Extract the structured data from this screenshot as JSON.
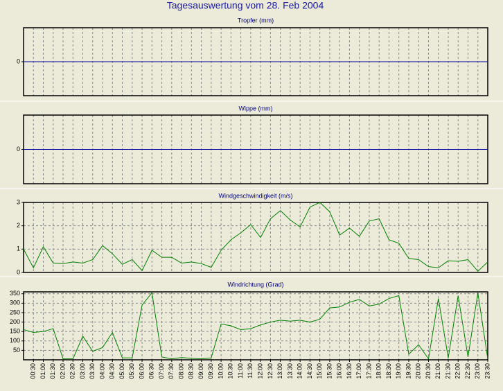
{
  "title": "Tagesauswertung vom 28. Feb 2004",
  "chart_data": [
    {
      "type": "line",
      "title": "Tropfer (mm)",
      "ylim": [
        -1,
        1
      ],
      "yticks": [
        0
      ],
      "grid": true,
      "series": [
        {
          "color": "#0000a0",
          "values": [
            0,
            0,
            0,
            0,
            0,
            0,
            0,
            0,
            0,
            0,
            0,
            0,
            0,
            0,
            0,
            0,
            0,
            0,
            0,
            0,
            0,
            0,
            0,
            0,
            0,
            0,
            0,
            0,
            0,
            0,
            0,
            0,
            0,
            0,
            0,
            0,
            0,
            0,
            0,
            0,
            0,
            0,
            0,
            0,
            0,
            0,
            0,
            0
          ]
        }
      ]
    },
    {
      "type": "line",
      "title": "Wippe (mm)",
      "ylim": [
        -1,
        1
      ],
      "yticks": [
        0
      ],
      "grid": true,
      "series": [
        {
          "color": "#0000a0",
          "values": [
            0,
            0,
            0,
            0,
            0,
            0,
            0,
            0,
            0,
            0,
            0,
            0,
            0,
            0,
            0,
            0,
            0,
            0,
            0,
            0,
            0,
            0,
            0,
            0,
            0,
            0,
            0,
            0,
            0,
            0,
            0,
            0,
            0,
            0,
            0,
            0,
            0,
            0,
            0,
            0,
            0,
            0,
            0,
            0,
            0,
            0,
            0,
            0
          ]
        }
      ]
    },
    {
      "type": "line",
      "title": "Windgeschwindigkeit (m/s)",
      "ylim": [
        0,
        3
      ],
      "yticks": [
        0,
        1,
        2,
        3
      ],
      "grid": true,
      "series": [
        {
          "color": "#008000",
          "values": [
            1.0,
            0.2,
            1.1,
            0.4,
            0.38,
            0.45,
            0.4,
            0.55,
            1.15,
            0.8,
            0.35,
            0.55,
            0.08,
            0.95,
            0.65,
            0.65,
            0.4,
            0.45,
            0.38,
            0.22,
            0.95,
            1.4,
            1.7,
            2.05,
            1.5,
            2.3,
            2.65,
            2.25,
            1.95,
            2.8,
            3.0,
            2.6,
            1.6,
            1.9,
            1.55,
            2.2,
            2.3,
            1.4,
            1.25,
            0.6,
            0.55,
            0.25,
            0.2,
            0.5,
            0.48,
            0.55,
            0.05,
            0.45
          ]
        }
      ]
    },
    {
      "type": "line",
      "title": "Windrichtung (Grad)",
      "ylim": [
        0,
        360
      ],
      "yticks": [
        50,
        100,
        150,
        200,
        250,
        300,
        350
      ],
      "grid": true,
      "categories": [
        null,
        "00:30",
        "01:00",
        "01:30",
        "02:00",
        "02:30",
        "03:00",
        "03:30",
        "04:00",
        "04:30",
        "05:00",
        "05:30",
        "06:00",
        "06:30",
        "07:00",
        "07:30",
        "08:00",
        "08:30",
        "09:00",
        "09:30",
        "10:00",
        "10:30",
        "11:00",
        "11:30",
        "12:00",
        "12:30",
        "13:00",
        "13:30",
        "14:00",
        "14:30",
        "15:00",
        "15:30",
        "16:00",
        "16:30",
        "17:00",
        "17:30",
        "18:00",
        "18:30",
        "19:00",
        "19:30",
        "20:00",
        "20:30",
        "21:00",
        "21:30",
        "22:00",
        "22:30",
        "23:00",
        "23:30"
      ],
      "series": [
        {
          "color": "#008000",
          "values": [
            160,
            145,
            150,
            165,
            5,
            5,
            125,
            45,
            65,
            145,
            10,
            10,
            290,
            355,
            15,
            5,
            12,
            8,
            5,
            10,
            190,
            180,
            160,
            165,
            185,
            200,
            210,
            205,
            210,
            200,
            215,
            275,
            280,
            305,
            320,
            285,
            295,
            325,
            340,
            30,
            80,
            5,
            325,
            10,
            340,
            15,
            355,
            5
          ]
        }
      ]
    }
  ]
}
